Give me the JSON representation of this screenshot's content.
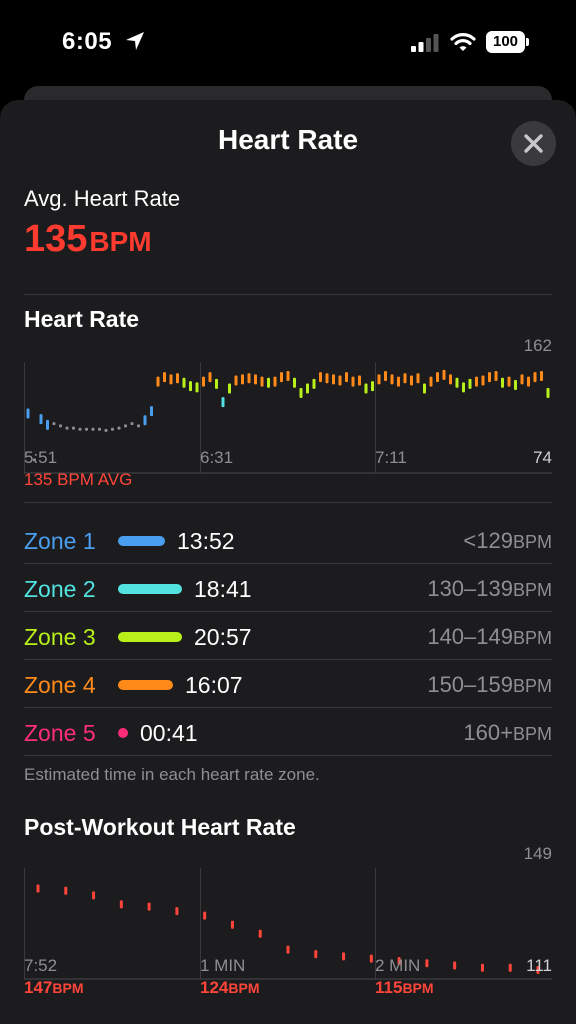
{
  "status_bar": {
    "time": "6:05",
    "battery": "100"
  },
  "header": {
    "title": "Heart Rate"
  },
  "summary": {
    "avg_label": "Avg. Heart Rate",
    "avg_value": "135",
    "avg_unit": "BPM"
  },
  "heart_rate_chart": {
    "title": "Heart Rate",
    "y_max_label": "162",
    "y_min_label": "74",
    "x_labels": [
      "5:51",
      "6:31",
      "7:11"
    ],
    "avg_caption": "135 BPM AVG"
  },
  "zones": [
    {
      "name": "Zone 1",
      "time": "13:52",
      "range": "<129",
      "unit": "BPM",
      "color": "#4a9eef",
      "fraction": 0.74
    },
    {
      "name": "Zone 2",
      "time": "18:41",
      "range": "130–139",
      "unit": "BPM",
      "color": "#52e3e0",
      "fraction": 1.0
    },
    {
      "name": "Zone 3",
      "time": "20:57",
      "range": "140–149",
      "unit": "BPM",
      "color": "#b8f11a",
      "fraction": 1.0
    },
    {
      "name": "Zone 4",
      "time": "16:07",
      "range": "150–159",
      "unit": "BPM",
      "color": "#ff8a1a",
      "fraction": 0.86
    },
    {
      "name": "Zone 5",
      "time": "00:41",
      "range": "160+",
      "unit": "BPM",
      "color": "#ff2d78",
      "fraction": 0.03
    }
  ],
  "zone_note": "Estimated time in each heart rate zone.",
  "post_workout": {
    "title": "Post-Workout Heart Rate",
    "y_max_label": "149",
    "y_min_label": "111",
    "x_labels": [
      "7:52",
      "1 MIN",
      "2 MIN"
    ],
    "values_at_ticks": [
      {
        "value": "147",
        "unit": "BPM"
      },
      {
        "value": "124",
        "unit": "BPM"
      },
      {
        "value": "115",
        "unit": "BPM"
      }
    ]
  },
  "chart_data": [
    {
      "type": "scatter",
      "title": "Heart Rate",
      "x_labels": [
        "5:51",
        "6:31",
        "7:11"
      ],
      "ylim": [
        74,
        162
      ],
      "avg": 135,
      "series": [
        {
          "x": [
            0,
            1,
            2,
            3,
            4,
            5,
            6,
            7,
            8,
            9,
            10,
            11,
            12,
            13,
            14,
            15,
            16,
            17,
            18,
            19,
            20,
            21,
            22,
            23,
            24,
            25,
            26,
            27,
            28,
            29,
            30,
            31,
            32,
            33,
            34,
            35,
            36,
            37,
            38,
            39,
            40,
            41,
            42,
            43,
            44,
            45,
            46,
            47,
            48,
            49,
            50,
            51,
            52,
            53,
            54,
            55,
            56,
            57,
            58,
            59,
            60,
            61,
            62,
            63,
            64,
            65,
            66,
            67,
            68,
            69,
            70,
            71,
            72,
            73,
            74,
            75,
            76,
            77,
            78,
            79,
            80
          ],
          "y": [
            122,
            78,
            117,
            112,
            110,
            108,
            106,
            106,
            105,
            105,
            105,
            105,
            104,
            105,
            106,
            108,
            110,
            108,
            116,
            124,
            150,
            154,
            152,
            153,
            149,
            146,
            145,
            150,
            154,
            148,
            132,
            144,
            151,
            152,
            153,
            152,
            150,
            149,
            150,
            154,
            155,
            149,
            140,
            144,
            148,
            154,
            153,
            152,
            151,
            154,
            150,
            151,
            144,
            146,
            152,
            155,
            152,
            150,
            153,
            151,
            153,
            144,
            150,
            154,
            156,
            152,
            149,
            145,
            148,
            150,
            151,
            154,
            155,
            149,
            150,
            147,
            152,
            150,
            154,
            155,
            140
          ]
        }
      ]
    },
    {
      "type": "scatter",
      "title": "Post-Workout Heart Rate",
      "x_labels": [
        "7:52",
        "1 MIN",
        "2 MIN"
      ],
      "ylim": [
        111,
        149
      ],
      "series": [
        {
          "x": [
            0,
            10,
            20,
            30,
            40,
            50,
            60,
            70,
            80,
            90,
            100,
            110,
            120,
            130,
            140,
            150,
            160,
            170,
            180
          ],
          "y": [
            147,
            146,
            144,
            140,
            139,
            137,
            135,
            131,
            127,
            120,
            118,
            117,
            116,
            115,
            114,
            113,
            112,
            112,
            111
          ]
        }
      ]
    }
  ]
}
